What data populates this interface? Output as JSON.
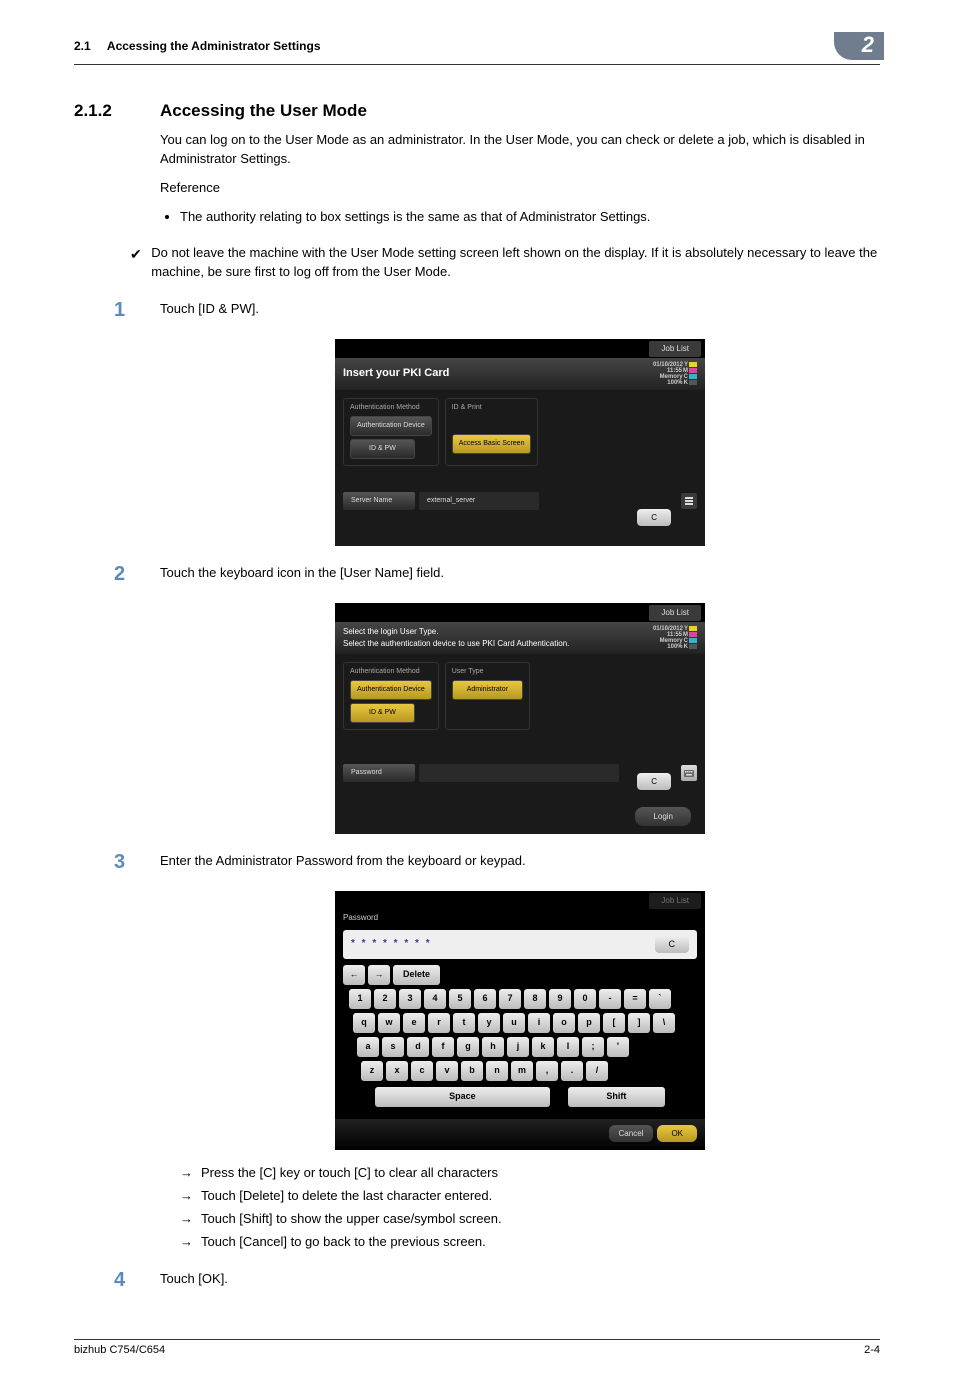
{
  "header": {
    "section": "2.1",
    "title": "Accessing the Administrator Settings",
    "chapter": "2"
  },
  "section": {
    "number": "2.1.2",
    "title": "Accessing the User Mode"
  },
  "intro": {
    "p1": "You can log on to the User Mode as an administrator. In the User Mode, you can check or delete a job, which is disabled in Administrator Settings.",
    "ref": "Reference",
    "bul1": "The authority relating to box settings is the same as that of Administrator Settings.",
    "note": "Do not leave the machine with the User Mode setting screen left shown on the display. If it is absolutely necessary to leave the machine, be sure first to log off from the User Mode."
  },
  "steps": {
    "s1": "Touch [ID & PW].",
    "s2": "Touch the keyboard icon in the [User Name] field.",
    "s3": "Enter the Administrator Password from the keyboard or keypad.",
    "s4": "Touch [OK]."
  },
  "arrows": {
    "a1": "Press the [C] key or touch [C] to clear all characters",
    "a2": "Touch [Delete] to delete the last character entered.",
    "a3": "Touch [Shift] to show the upper case/symbol screen.",
    "a4": "Touch [Cancel] to go back to the previous screen."
  },
  "screen1": {
    "joblist": "Job List",
    "title": "Insert your PKI Card",
    "date": "01/10/2012",
    "time": "11:55",
    "memory": "Memory",
    "pct": "100%",
    "auth_method": "Authentication Method",
    "auth_device": "Authentication Device",
    "idpw": "ID & PW",
    "id_print": "ID & Print",
    "access_basic": "Access Basic Screen",
    "server_name": "Server Name",
    "server_val": "external_server",
    "c": "C"
  },
  "screen2": {
    "joblist": "Job List",
    "title1": "Select the login User Type.",
    "title2": "Select the authentication device to use PKI Card Authentication.",
    "date": "01/10/2012",
    "time": "11:55",
    "memory": "Memory",
    "pct": "100%",
    "auth_method": "Authentication Method",
    "auth_device": "Authentication Device",
    "idpw": "ID & PW",
    "user_type": "User Type",
    "admin": "Administrator",
    "password": "Password",
    "c": "C",
    "login": "Login"
  },
  "keyboard": {
    "joblist": "Job List",
    "label": "Password",
    "value": "* * * * * * * *",
    "c": "C",
    "left": "←",
    "right": "→",
    "delete": "Delete",
    "row1": [
      "1",
      "2",
      "3",
      "4",
      "5",
      "6",
      "7",
      "8",
      "9",
      "0",
      "-",
      "=",
      "`"
    ],
    "row2": [
      "q",
      "w",
      "e",
      "r",
      "t",
      "y",
      "u",
      "i",
      "o",
      "p",
      "[",
      "]",
      "\\"
    ],
    "row3": [
      "a",
      "s",
      "d",
      "f",
      "g",
      "h",
      "j",
      "k",
      "l",
      ";",
      "'"
    ],
    "row4": [
      "z",
      "x",
      "c",
      "v",
      "b",
      "n",
      "m",
      ",",
      ".",
      "/"
    ],
    "space": "Space",
    "shift": "Shift",
    "cancel": "Cancel",
    "ok": "OK"
  },
  "footer": {
    "left": "bizhub C754/C654",
    "right": "2-4"
  },
  "colors": {
    "chapter_bg": "#6f7d8f",
    "step_num": "#5b8bbd",
    "sel_btn_top": "#e8c840",
    "sel_btn_bot": "#b89820"
  }
}
